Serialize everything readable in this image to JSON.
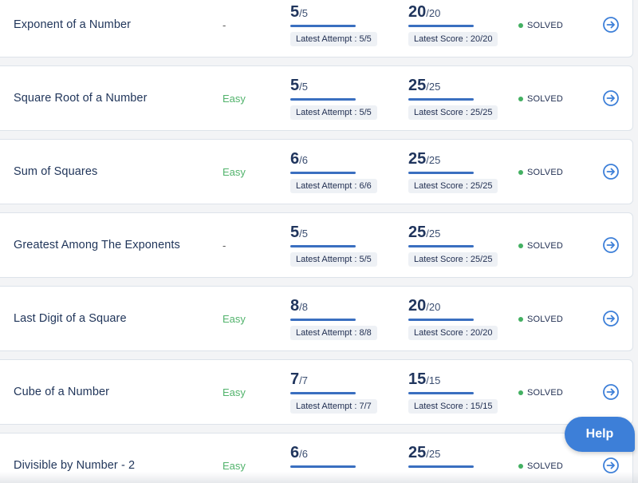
{
  "problems": [
    {
      "title": "Exponent of a Number",
      "difficulty": "-",
      "difficulty_type": "none",
      "attempt_value": "5",
      "attempt_total": "/5",
      "attempt_fraction": 1.0,
      "attempt_label": "Latest Attempt : 5/5",
      "score_value": "20",
      "score_total": "/20",
      "score_fraction": 1.0,
      "score_label": "Latest Score : 20/20",
      "status": "SOLVED"
    },
    {
      "title": "Square Root of a Number",
      "difficulty": "Easy",
      "difficulty_type": "easy",
      "attempt_value": "5",
      "attempt_total": "/5",
      "attempt_fraction": 1.0,
      "attempt_label": "Latest Attempt : 5/5",
      "score_value": "25",
      "score_total": "/25",
      "score_fraction": 1.0,
      "score_label": "Latest Score : 25/25",
      "status": "SOLVED"
    },
    {
      "title": "Sum of Squares",
      "difficulty": "Easy",
      "difficulty_type": "easy",
      "attempt_value": "6",
      "attempt_total": "/6",
      "attempt_fraction": 1.0,
      "attempt_label": "Latest Attempt : 6/6",
      "score_value": "25",
      "score_total": "/25",
      "score_fraction": 1.0,
      "score_label": "Latest Score : 25/25",
      "status": "SOLVED"
    },
    {
      "title": "Greatest Among The Exponents",
      "difficulty": "-",
      "difficulty_type": "none",
      "attempt_value": "5",
      "attempt_total": "/5",
      "attempt_fraction": 1.0,
      "attempt_label": "Latest Attempt : 5/5",
      "score_value": "25",
      "score_total": "/25",
      "score_fraction": 1.0,
      "score_label": "Latest Score : 25/25",
      "status": "SOLVED"
    },
    {
      "title": "Last Digit of a Square",
      "difficulty": "Easy",
      "difficulty_type": "easy",
      "attempt_value": "8",
      "attempt_total": "/8",
      "attempt_fraction": 1.0,
      "attempt_label": "Latest Attempt : 8/8",
      "score_value": "20",
      "score_total": "/20",
      "score_fraction": 1.0,
      "score_label": "Latest Score : 20/20",
      "status": "SOLVED"
    },
    {
      "title": "Cube of a Number",
      "difficulty": "Easy",
      "difficulty_type": "easy",
      "attempt_value": "7",
      "attempt_total": "/7",
      "attempt_fraction": 1.0,
      "attempt_label": "Latest Attempt : 7/7",
      "score_value": "15",
      "score_total": "/15",
      "score_fraction": 1.0,
      "score_label": "Latest Score : 15/15",
      "status": "SOLVED"
    },
    {
      "title": "Divisible by Number - 2",
      "difficulty": "Easy",
      "difficulty_type": "easy",
      "attempt_value": "6",
      "attempt_total": "/6",
      "attempt_fraction": 1.0,
      "attempt_label": "",
      "score_value": "25",
      "score_total": "/25",
      "score_fraction": 1.0,
      "score_label": "",
      "status": "SOLVED"
    }
  ],
  "icons": {
    "open": "arrow-right-circle-icon",
    "status_dot": "status-dot-icon"
  },
  "help": {
    "label": "Help"
  },
  "colors": {
    "easy": "#52b36c",
    "solved_dot": "#43b062",
    "accent": "#3a6fc0",
    "help_bg": "#3d7fd8",
    "text_dark": "#1f3459"
  }
}
